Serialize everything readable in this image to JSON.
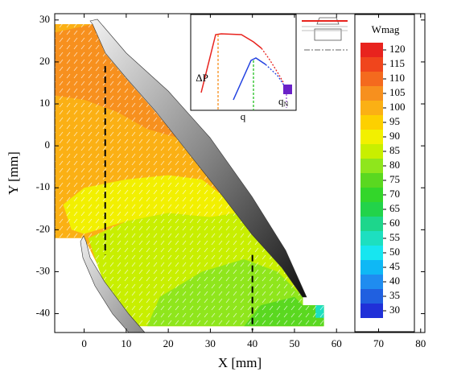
{
  "chart_data": {
    "type": "contour",
    "x_label": "X [mm]",
    "y_label": "Y [mm]",
    "xlim": [
      -7,
      81
    ],
    "ylim": [
      -44.5,
      31.5
    ],
    "xticks": [
      0,
      10,
      20,
      30,
      40,
      50,
      60,
      70,
      80
    ],
    "yticks": [
      -40,
      -30,
      -20,
      -10,
      0,
      10,
      20,
      30
    ],
    "colorbar": {
      "label": "Wmag",
      "levels": [
        120,
        115,
        110,
        105,
        100,
        95,
        90,
        85,
        80,
        75,
        70,
        65,
        60,
        55,
        50,
        45,
        40,
        35,
        30
      ],
      "colors": [
        "#e8231e",
        "#f0451c",
        "#f46a1e",
        "#f7901e",
        "#fbb014",
        "#fdd000",
        "#f2f000",
        "#c8ef00",
        "#8fe61c",
        "#5ad820",
        "#33d62a",
        "#22d34a",
        "#1dd68c",
        "#1ddfc0",
        "#17e6f0",
        "#0fb8f5",
        "#1f8cf0",
        "#2060e0",
        "#2030d8"
      ]
    },
    "regions": [
      {
        "level": 100,
        "x": [
          -7,
          2,
          5,
          10,
          17,
          25,
          33,
          40,
          47,
          52,
          52,
          57,
          57,
          11,
          6,
          3,
          1,
          0,
          -7
        ],
        "y": [
          29,
          29,
          22,
          16,
          8,
          -2,
          -12,
          -21,
          -29,
          -36,
          -38,
          -38,
          -43,
          -43,
          -36,
          -28,
          -24,
          -22,
          -22
        ]
      },
      {
        "level": 105,
        "x": [
          -7,
          2,
          5,
          10,
          17,
          22,
          15,
          8,
          0,
          -7
        ],
        "y": [
          27,
          29,
          22,
          16,
          8,
          2,
          4,
          8,
          11,
          12
        ]
      },
      {
        "level": 90,
        "x": [
          -3,
          -5,
          0,
          10,
          20,
          28,
          33,
          36,
          30,
          20,
          10,
          0
        ],
        "y": [
          -20,
          -14,
          -10,
          -8,
          -7,
          -8,
          -12,
          -16,
          -17,
          -16,
          -18,
          -21
        ]
      },
      {
        "level": 85,
        "x": [
          1,
          10,
          20,
          30,
          36,
          40,
          47,
          52,
          52,
          57,
          57,
          11,
          6,
          3
        ],
        "y": [
          -22,
          -18,
          -16,
          -17,
          -16,
          -21,
          -29,
          -36,
          -38,
          -38,
          -43,
          -43,
          -36,
          -28
        ]
      },
      {
        "level": 80,
        "x": [
          15,
          18,
          28,
          38,
          46,
          52,
          52,
          57,
          57
        ],
        "y": [
          -43,
          -36,
          -30,
          -27,
          -30,
          -36,
          -38,
          -38,
          -43
        ]
      },
      {
        "level": 75,
        "x": [
          38,
          42,
          50,
          52,
          57,
          57
        ],
        "y": [
          -43,
          -38,
          -36,
          -38,
          -38,
          -43
        ]
      },
      {
        "level": 55,
        "x": [
          55,
          57,
          57,
          55
        ],
        "y": [
          -38,
          -38,
          -41,
          -41
        ]
      }
    ],
    "dashed_x": [
      5,
      40
    ],
    "dashed_y": [
      [
        19,
        -26
      ],
      [
        -26,
        -44
      ]
    ],
    "inset": {
      "y_label": "ΔP",
      "x_label": "q",
      "marker_label": "q",
      "marker_subscript": "N"
    }
  }
}
